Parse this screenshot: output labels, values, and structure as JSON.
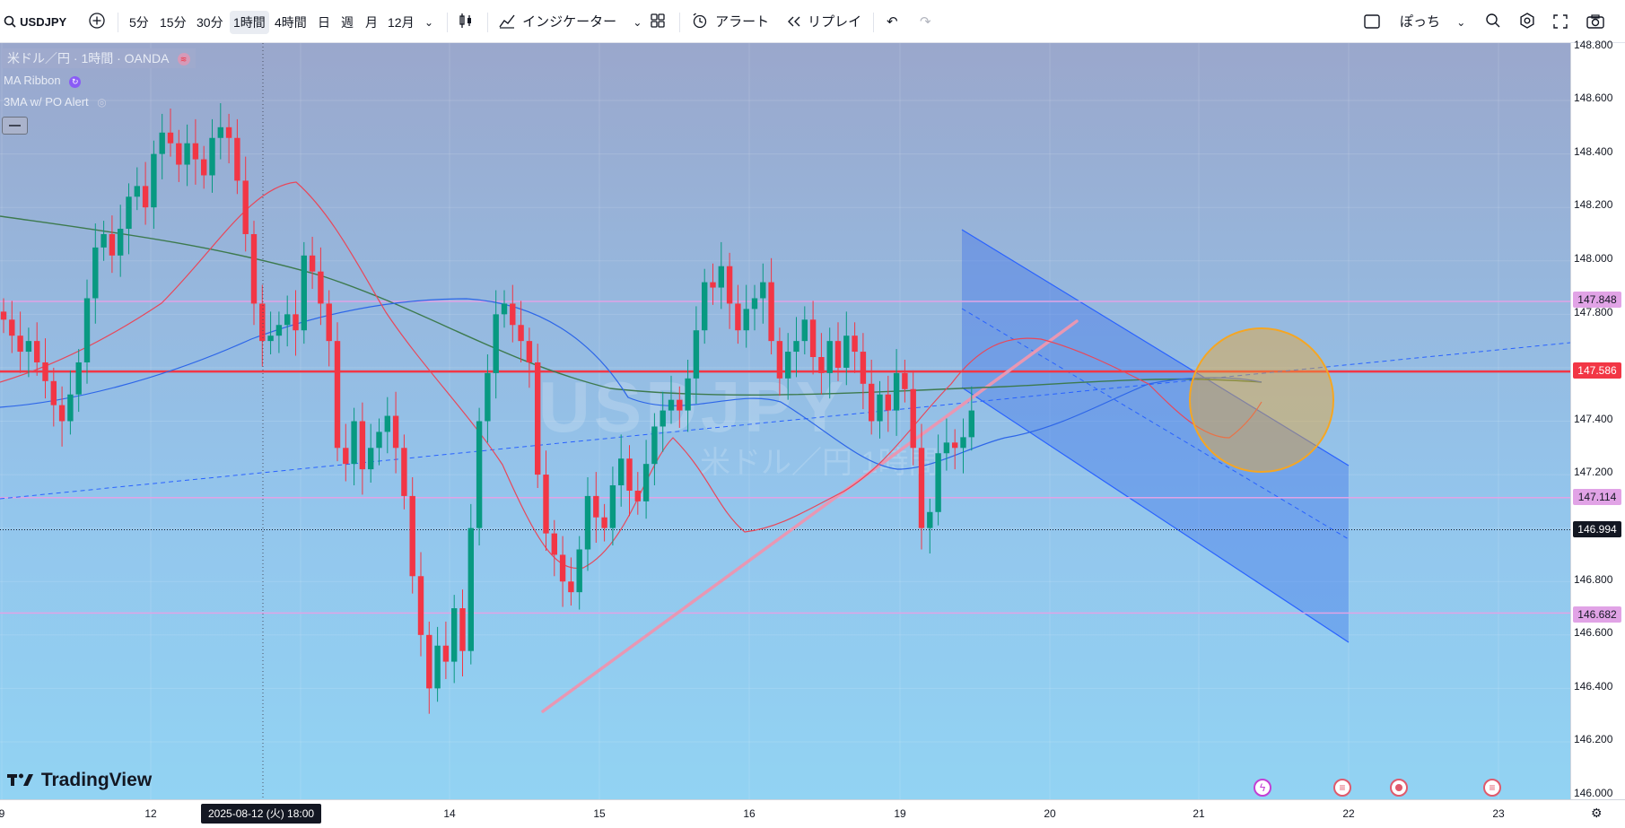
{
  "toolbar": {
    "symbol": "USDJPY",
    "intervals": [
      "5分",
      "15分",
      "30分",
      "1時間",
      "4時間",
      "日",
      "週",
      "月",
      "12月"
    ],
    "active_interval": "1時間",
    "indicators_label": "インジケーター",
    "alert_label": "アラート",
    "replay_label": "リプレイ",
    "user_label": "ぽっち"
  },
  "legend": {
    "title": "米ドル／円 · 1時間 · OANDA",
    "indicator1": "MA Ribbon",
    "indicator2": "3MA w/ PO Alert"
  },
  "watermark": {
    "symbol": "USDJPY",
    "interval": "1時間",
    "name": "米ドル／円"
  },
  "branding": {
    "logo": "TradingView"
  },
  "price_axis": {
    "ticks": [
      "148.600",
      "148.400",
      "148.200",
      "148.000",
      "147.800",
      "147.400",
      "147.200",
      "146.800",
      "146.600",
      "146.400",
      "146.200",
      "146.000"
    ],
    "top_partial": "148.800",
    "tags": [
      {
        "value": "147.848",
        "bg": "#e1a3e6",
        "fg": "#131722"
      },
      {
        "value": "147.586",
        "bg": "#f23645",
        "fg": "#ffffff"
      },
      {
        "value": "147.114",
        "bg": "#e1a3e6",
        "fg": "#131722"
      },
      {
        "value": "146.994",
        "bg": "#131722",
        "fg": "#ffffff"
      },
      {
        "value": "146.682",
        "bg": "#e1a3e6",
        "fg": "#131722"
      }
    ]
  },
  "time_axis": {
    "labels": [
      "9",
      "12",
      "14",
      "15",
      "16",
      "19",
      "20",
      "21",
      "22",
      "23"
    ],
    "cursor_label": "2025-08-12 (火)   18:00"
  },
  "chart_data": {
    "type": "candlestick",
    "symbol": "USDJPY",
    "interval": "1時間",
    "source": "OANDA",
    "ylim": [
      145.985,
      148.815
    ],
    "x_ticks": [
      "9",
      "12",
      "14",
      "15",
      "16",
      "19",
      "20",
      "21",
      "22",
      "23"
    ],
    "horizontal_levels": [
      {
        "price": 147.586,
        "style": "solid",
        "color": "#f23645"
      },
      {
        "price": 147.848,
        "style": "solid",
        "color": "#e1a3e6"
      },
      {
        "price": 147.114,
        "style": "solid",
        "color": "#e1a3e6"
      },
      {
        "price": 146.682,
        "style": "solid",
        "color": "#e1a3e6"
      },
      {
        "price": 146.994,
        "style": "dotted",
        "color": "#131722"
      }
    ],
    "candles_close": [
      147.78,
      147.72,
      147.66,
      147.7,
      147.62,
      147.55,
      147.46,
      147.4,
      147.5,
      147.62,
      147.86,
      148.05,
      148.1,
      148.02,
      148.12,
      148.24,
      148.28,
      148.2,
      148.4,
      148.48,
      148.44,
      148.36,
      148.44,
      148.38,
      148.32,
      148.46,
      148.5,
      148.46,
      148.3,
      148.1,
      147.84,
      147.7,
      147.72,
      147.76,
      147.8,
      147.74,
      148.02,
      147.96,
      147.84,
      147.7,
      147.3,
      147.24,
      147.4,
      147.22,
      147.3,
      147.36,
      147.42,
      147.3,
      147.12,
      146.82,
      146.6,
      146.4,
      146.56,
      146.5,
      146.7,
      146.54,
      147.0,
      147.4,
      147.58,
      147.8,
      147.84,
      147.76,
      147.7,
      147.62,
      147.2,
      146.98,
      146.9,
      146.8,
      146.76,
      146.92,
      147.12,
      147.04,
      147.0,
      147.16,
      147.26,
      147.14,
      147.1,
      147.24,
      147.38,
      147.44,
      147.48,
      147.44,
      147.56,
      147.74,
      147.92,
      147.9,
      147.98,
      147.84,
      147.74,
      147.82,
      147.86,
      147.92,
      147.7,
      147.56,
      147.66,
      147.7,
      147.78,
      147.64,
      147.58,
      147.7,
      147.6,
      147.72,
      147.66,
      147.54,
      147.4,
      147.5,
      147.44,
      147.58,
      147.52,
      147.3,
      147.0,
      147.06,
      147.28,
      147.32,
      147.3,
      147.34,
      147.44
    ]
  }
}
